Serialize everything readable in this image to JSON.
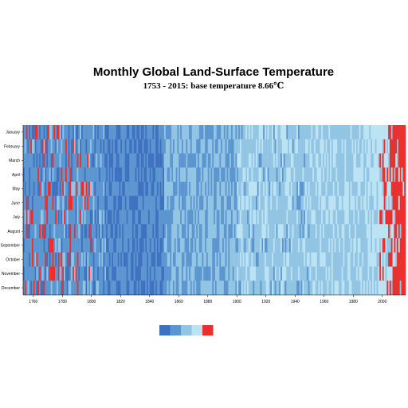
{
  "chart_data": {
    "type": "heatmap",
    "title": "Monthly Global Land-Surface Temperature",
    "subtitle": "1753 - 2015: base temperature 8.66℃",
    "x": {
      "start_year": 1753,
      "end_year": 2015,
      "tick_labels": [
        "1760",
        "1780",
        "1800",
        "1820",
        "1840",
        "1860",
        "1880",
        "1900",
        "1920",
        "1940",
        "1960",
        "1980",
        "2000"
      ]
    },
    "months": [
      "January",
      "February",
      "March",
      "April",
      "May",
      "June",
      "July",
      "August",
      "September",
      "October",
      "November",
      "December"
    ],
    "legend_colors": [
      "#3E72C0",
      "#5C96D0",
      "#92C4E3",
      "#BCE3F3",
      "#E8312E"
    ],
    "palette_description_colors": {
      "dark_blue": "#3E72C0",
      "mid_blue": "#5C96D0",
      "light_blue": "#92C4E3",
      "pale_blue": "#BCE3F3",
      "red": "#E8312E"
    },
    "grid": false,
    "legend_placement": "bottom-center"
  }
}
